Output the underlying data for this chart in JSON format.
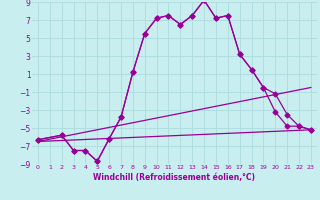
{
  "xlabel": "Windchill (Refroidissement éolien,°C)",
  "bg_color": "#c8eef0",
  "grid_color": "#b0dde0",
  "line_color": "#990099",
  "xlim": [
    -0.5,
    23.5
  ],
  "ylim": [
    -9,
    9
  ],
  "xticks": [
    0,
    1,
    2,
    3,
    4,
    5,
    6,
    7,
    8,
    9,
    10,
    11,
    12,
    13,
    14,
    15,
    16,
    17,
    18,
    19,
    20,
    21,
    22,
    23
  ],
  "yticks": [
    -9,
    -7,
    -5,
    -3,
    -1,
    1,
    3,
    5,
    7,
    9
  ],
  "line1_x": [
    0,
    23
  ],
  "line1_y": [
    -6.5,
    -5.2
  ],
  "line2_x": [
    0,
    23
  ],
  "line2_y": [
    -6.5,
    -0.5
  ],
  "jagged1_x": [
    0,
    2,
    3,
    4,
    5,
    6,
    7,
    8,
    9,
    10,
    11,
    12,
    13,
    14,
    15,
    16,
    17,
    18,
    19,
    20,
    21,
    22,
    23
  ],
  "jagged1_y": [
    -6.3,
    -5.8,
    -7.5,
    -7.5,
    -8.7,
    -6.2,
    -3.8,
    1.2,
    5.5,
    7.2,
    7.5,
    6.5,
    7.5,
    9.2,
    7.2,
    7.5,
    3.2,
    1.5,
    -0.5,
    -3.2,
    -4.8,
    -4.8,
    -5.2
  ],
  "jagged2_x": [
    0,
    2,
    3,
    4,
    5,
    6,
    7,
    8,
    9,
    10,
    11,
    12,
    13,
    14,
    15,
    16,
    17,
    18,
    19,
    20,
    21,
    22,
    23
  ],
  "jagged2_y": [
    -6.3,
    -5.8,
    -7.5,
    -7.5,
    -8.7,
    -6.2,
    -3.8,
    1.2,
    5.5,
    7.2,
    7.5,
    6.5,
    7.5,
    9.2,
    7.2,
    7.5,
    3.2,
    1.5,
    -0.5,
    -1.2,
    -3.5,
    -4.8,
    -5.2
  ]
}
